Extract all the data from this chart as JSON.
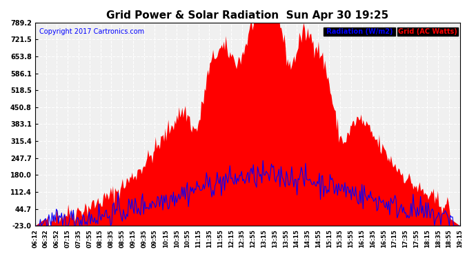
{
  "title": "Grid Power & Solar Radiation  Sun Apr 30 19:25",
  "copyright": "Copyright 2017 Cartronics.com",
  "ymin": -23.0,
  "ymax": 789.2,
  "yticks": [
    -23.0,
    44.7,
    112.4,
    180.0,
    247.7,
    315.4,
    383.1,
    450.8,
    518.5,
    586.1,
    653.8,
    721.5,
    789.2
  ],
  "xlabel_start": "06:12",
  "background_color": "#ffffff",
  "plot_bg_color": "#f0f0f0",
  "grid_color": "#ffffff",
  "red_fill_color": "#ff0000",
  "blue_line_color": "#0000ff",
  "legend_bg": "#ff0000",
  "xtick_labels": [
    "06:12",
    "06:32",
    "06:52",
    "07:15",
    "07:35",
    "07:55",
    "08:15",
    "08:35",
    "08:55",
    "09:15",
    "09:35",
    "09:55",
    "10:15",
    "10:35",
    "10:55",
    "11:15",
    "11:35",
    "11:55",
    "12:15",
    "12:35",
    "12:55",
    "13:15",
    "13:35",
    "13:55",
    "14:15",
    "14:35",
    "14:55",
    "15:15",
    "15:35",
    "15:55",
    "16:15",
    "16:35",
    "16:55",
    "17:15",
    "17:35",
    "17:55",
    "18:15",
    "18:35",
    "18:55",
    "19:15"
  ]
}
